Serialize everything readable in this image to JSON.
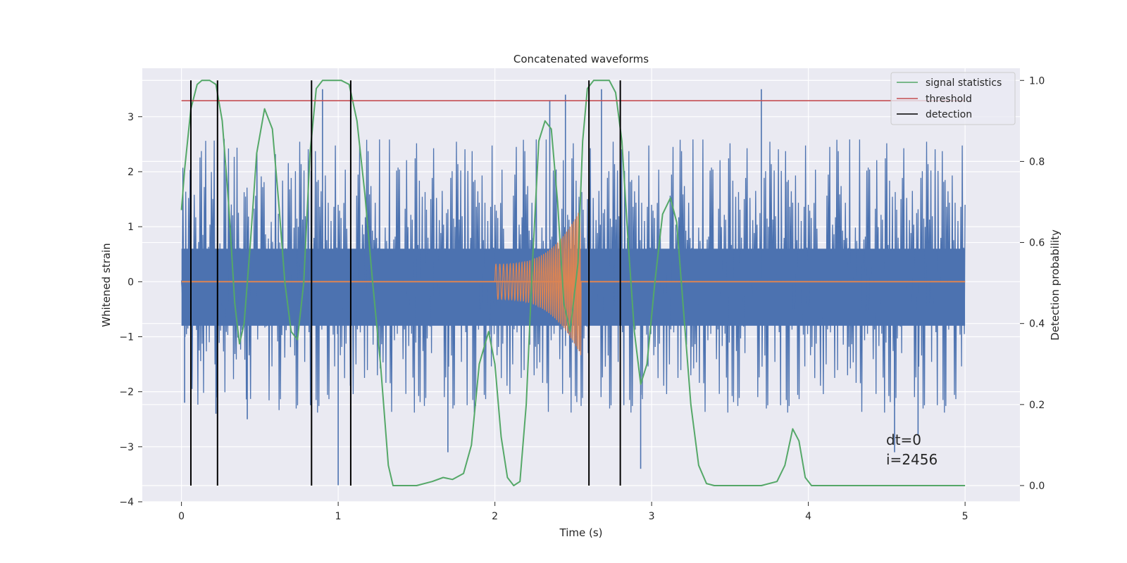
{
  "chart_data": {
    "type": "line",
    "title": "Concatenated waveforms",
    "xlabel": "Time (s)",
    "ylabel": "Whitened strain",
    "y2label": "Detection probability",
    "xlim": [
      -0.25,
      5.35
    ],
    "ylim": [
      -4.0,
      3.88
    ],
    "y2lim": [
      -0.04,
      1.03
    ],
    "xticks": [
      0,
      1,
      2,
      3,
      4,
      5
    ],
    "yticks": [
      -4,
      -3,
      -2,
      -1,
      0,
      1,
      2,
      3
    ],
    "y2ticks": [
      0.0,
      0.2,
      0.4,
      0.6,
      0.8,
      1.0
    ],
    "grid": true,
    "legend_position": "top-right",
    "annotation": {
      "dt": "dt=0",
      "i": "i=2456"
    },
    "noise": {
      "x_range": [
        0,
        5
      ],
      "envelope_low": -2.4,
      "envelope_high": 2.6,
      "band_low": -0.8,
      "band_high": 0.6,
      "spikes": [
        {
          "x": 0.02,
          "y": -2.2
        },
        {
          "x": 0.22,
          "y": -2.4
        },
        {
          "x": 0.42,
          "y": -2.5
        },
        {
          "x": 0.83,
          "y": -2.8
        },
        {
          "x": 0.9,
          "y": 3.5
        },
        {
          "x": 1.0,
          "y": -3.7
        },
        {
          "x": 1.08,
          "y": -2.4
        },
        {
          "x": 1.7,
          "y": -3.1
        },
        {
          "x": 2.35,
          "y": 3.3
        },
        {
          "x": 2.45,
          "y": 3.4
        },
        {
          "x": 2.68,
          "y": 3.5
        },
        {
          "x": 2.93,
          "y": -3.4
        },
        {
          "x": 3.7,
          "y": 3.5
        },
        {
          "x": 4.55,
          "y": -3.1
        },
        {
          "x": 4.7,
          "y": -2.8
        }
      ]
    },
    "series": [
      {
        "name": "",
        "axis": "left",
        "color": "#dd8452",
        "chirp": {
          "t_start": 2.0,
          "t_end": 2.55,
          "amp_start": 0.32,
          "amp_end": 1.35,
          "cycles": 38
        }
      },
      {
        "name": "signal statistics",
        "axis": "right",
        "color": "#55a868",
        "x": [
          0,
          0.02,
          0.06,
          0.1,
          0.13,
          0.18,
          0.22,
          0.26,
          0.3,
          0.34,
          0.37,
          0.4,
          0.44,
          0.48,
          0.53,
          0.58,
          0.62,
          0.66,
          0.7,
          0.74,
          0.78,
          0.82,
          0.86,
          0.9,
          0.96,
          1.02,
          1.07,
          1.12,
          1.17,
          1.22,
          1.27,
          1.32,
          1.35,
          1.4,
          1.5,
          1.6,
          1.67,
          1.73,
          1.8,
          1.85,
          1.9,
          1.96,
          2.0,
          2.04,
          2.08,
          2.12,
          2.16,
          2.2,
          2.24,
          2.28,
          2.32,
          2.36,
          2.4,
          2.44,
          2.48,
          2.53,
          2.56,
          2.59,
          2.63,
          2.68,
          2.73,
          2.77,
          2.81,
          2.85,
          2.89,
          2.93,
          2.97,
          3.02,
          3.07,
          3.12,
          3.16,
          3.2,
          3.25,
          3.3,
          3.35,
          3.4,
          3.5,
          3.7,
          3.8,
          3.85,
          3.9,
          3.94,
          3.98,
          4.02,
          4.1,
          4.5,
          5.0
        ],
        "values": [
          0.68,
          0.78,
          0.93,
          0.99,
          1.0,
          1.0,
          0.99,
          0.9,
          0.7,
          0.45,
          0.35,
          0.4,
          0.6,
          0.82,
          0.93,
          0.88,
          0.7,
          0.5,
          0.38,
          0.36,
          0.5,
          0.82,
          0.98,
          1.0,
          1.0,
          1.0,
          0.99,
          0.9,
          0.72,
          0.5,
          0.3,
          0.05,
          0.0,
          0.0,
          0.0,
          0.01,
          0.02,
          0.015,
          0.03,
          0.1,
          0.3,
          0.38,
          0.3,
          0.12,
          0.02,
          0.0,
          0.01,
          0.2,
          0.55,
          0.85,
          0.9,
          0.88,
          0.7,
          0.45,
          0.38,
          0.55,
          0.85,
          0.98,
          1.0,
          1.0,
          1.0,
          0.97,
          0.85,
          0.6,
          0.38,
          0.25,
          0.3,
          0.5,
          0.67,
          0.71,
          0.65,
          0.45,
          0.2,
          0.05,
          0.005,
          0.0,
          0.0,
          0.0,
          0.01,
          0.05,
          0.14,
          0.11,
          0.02,
          0.0,
          0.0,
          0.0,
          0.0
        ]
      },
      {
        "name": "threshold",
        "axis": "right",
        "color": "#c44e52",
        "x": [
          0,
          5
        ],
        "values": [
          0.95,
          0.95
        ]
      },
      {
        "name": "detection",
        "axis": "right",
        "color": "#000000",
        "vlines": [
          0.06,
          0.23,
          0.83,
          1.08,
          2.6,
          2.8
        ],
        "vline_range": [
          0.0,
          1.0
        ]
      }
    ]
  }
}
